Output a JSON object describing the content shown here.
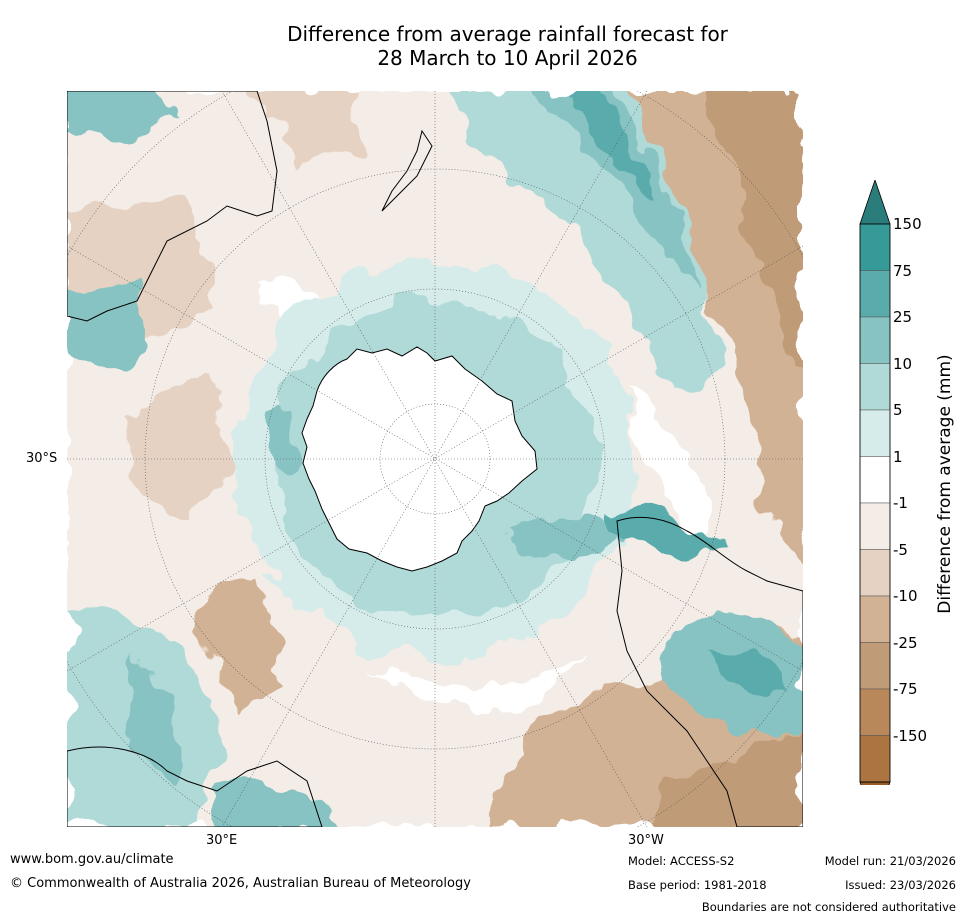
{
  "title": {
    "line1": "Difference from average rainfall forecast for",
    "line2": "28 March to 10 April 2026"
  },
  "map": {
    "lat_label": "30°S",
    "lon_labels": {
      "east": "30°E",
      "west": "30°W"
    },
    "projection": "south-polar stereographic",
    "colors": {
      "coast": "#000000",
      "border": "#888888",
      "grid": "#555555"
    }
  },
  "colorbar": {
    "title": "Difference from average (mm)",
    "labels": [
      "150",
      "75",
      "25",
      "10",
      "5",
      "1",
      "-1",
      "-5",
      "-10",
      "-25",
      "-75",
      "-150"
    ],
    "colors_top_to_bottom": [
      "#2a7d7b",
      "#359a98",
      "#5aacac",
      "#86c3c2",
      "#b0dad8",
      "#d6ecea",
      "#ffffff",
      "#f4ece6",
      "#e5d2c2",
      "#d2b294",
      "#c09b77",
      "#b8875a",
      "#ab7440",
      "#965d26"
    ]
  },
  "footer": {
    "url": "www.bom.gov.au/climate",
    "copyright": "© Commonwealth of Australia 2026, Australian Bureau of Meteorology",
    "model": "Model: ACCESS-S2",
    "base_period": "Base period: 1981-2018",
    "model_run": "Model run: 21/03/2026",
    "issued": "Issued: 23/03/2026",
    "disclaimer": "Boundaries are not considered authoritative"
  }
}
